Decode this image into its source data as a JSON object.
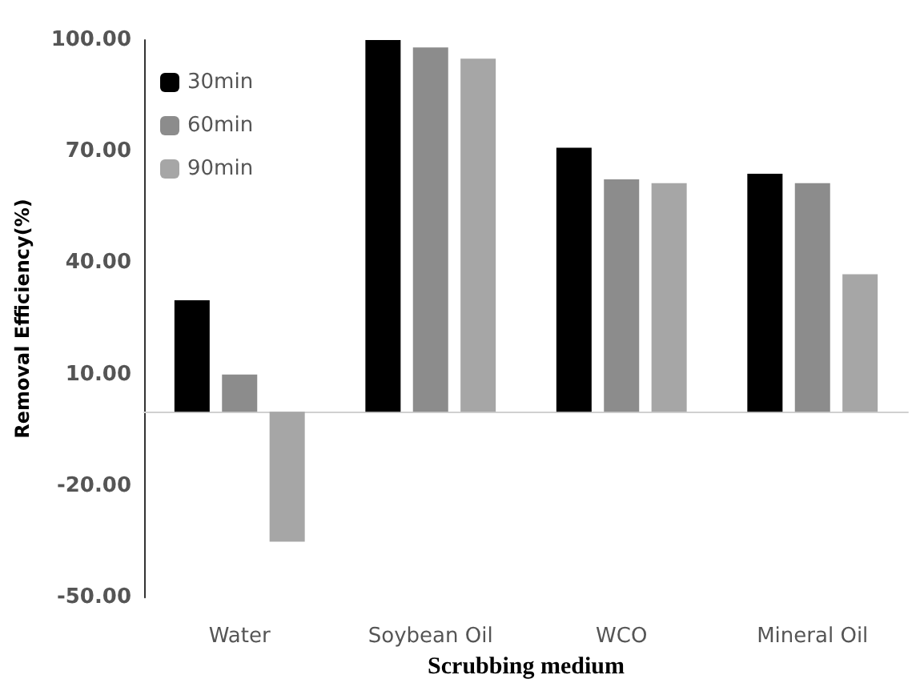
{
  "chart_data": {
    "type": "bar",
    "xlabel": "Scrubbing medium",
    "ylabel": "Removal Efficiency(%)",
    "categories": [
      "Water",
      "Soybean Oil",
      "WCO",
      "Mineral Oil"
    ],
    "series": [
      {
        "name": "30min",
        "color": "#000000",
        "values": [
          30,
          100,
          71,
          64
        ]
      },
      {
        "name": "60min",
        "color": "#8c8c8c",
        "values": [
          10,
          98,
          62.5,
          61.5
        ]
      },
      {
        "name": "90min",
        "color": "#a6a6a6",
        "values": [
          -35,
          95,
          61.5,
          37
        ]
      }
    ],
    "ylim": [
      -50,
      100
    ],
    "yticks": [
      {
        "value": -50,
        "label": "-50.00"
      },
      {
        "value": -20,
        "label": "-20.00"
      },
      {
        "value": 10,
        "label": "10.00"
      },
      {
        "value": 40,
        "label": "40.00"
      },
      {
        "value": 70,
        "label": "70.00"
      },
      {
        "value": 100,
        "label": "100.00"
      }
    ],
    "grid": false,
    "legend": "top left"
  }
}
